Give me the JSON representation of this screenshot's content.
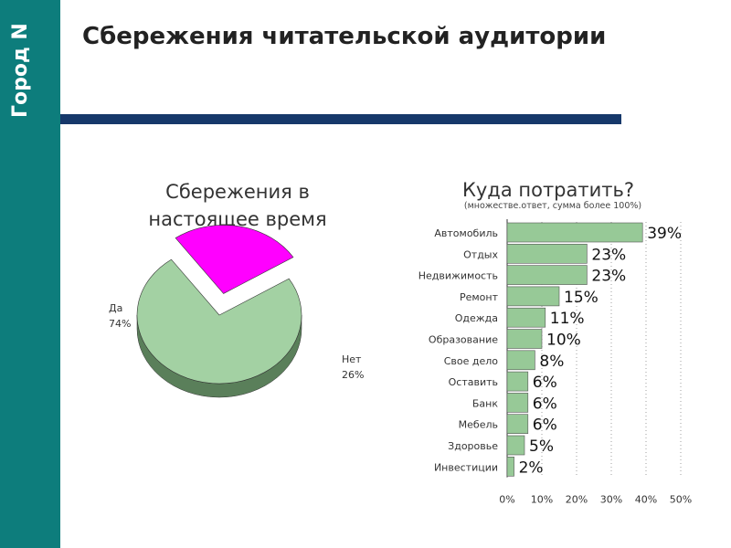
{
  "brand": "Город N",
  "page": {
    "title": "Сбережения читательской аудитории"
  },
  "colors": {
    "sidebar": "#0d7d7c",
    "rule": "#16386a",
    "bar": "#97c997",
    "pie_yes": "#a3d1a3",
    "pie_no": "#ff00ff"
  },
  "chart_data": [
    {
      "type": "pie",
      "title": "Сбережения в настоящее время",
      "title_line1": "Сбережения в",
      "title_line2": "настоящее время",
      "slices": [
        {
          "label": "Да",
          "value": 74,
          "value_text": "74%"
        },
        {
          "label": "Нет",
          "value": 26,
          "value_text": "26%"
        }
      ]
    },
    {
      "type": "bar",
      "orientation": "horizontal",
      "title": "Куда потратить?",
      "subtitle": "(множестве.ответ, сумма более 100%)",
      "categories": [
        "Автомобиль",
        "Отдых",
        "Недвижимость",
        "Ремонт",
        "Одежда",
        "Образование",
        "Свое дело",
        "Оставить",
        "Банк",
        "Мебель",
        "Здоровье",
        "Инвестиции"
      ],
      "values": [
        39,
        23,
        23,
        15,
        11,
        10,
        8,
        6,
        6,
        6,
        5,
        2
      ],
      "value_labels": [
        "39%",
        "23%",
        "23%",
        "15%",
        "11%",
        "10%",
        "8%",
        "6%",
        "6%",
        "6%",
        "5%",
        "2%"
      ],
      "xlim": [
        0,
        50
      ],
      "xticks": [
        "0%",
        "10%",
        "20%",
        "30%",
        "40%",
        "50%"
      ],
      "grid": "vertical dotted"
    }
  ]
}
